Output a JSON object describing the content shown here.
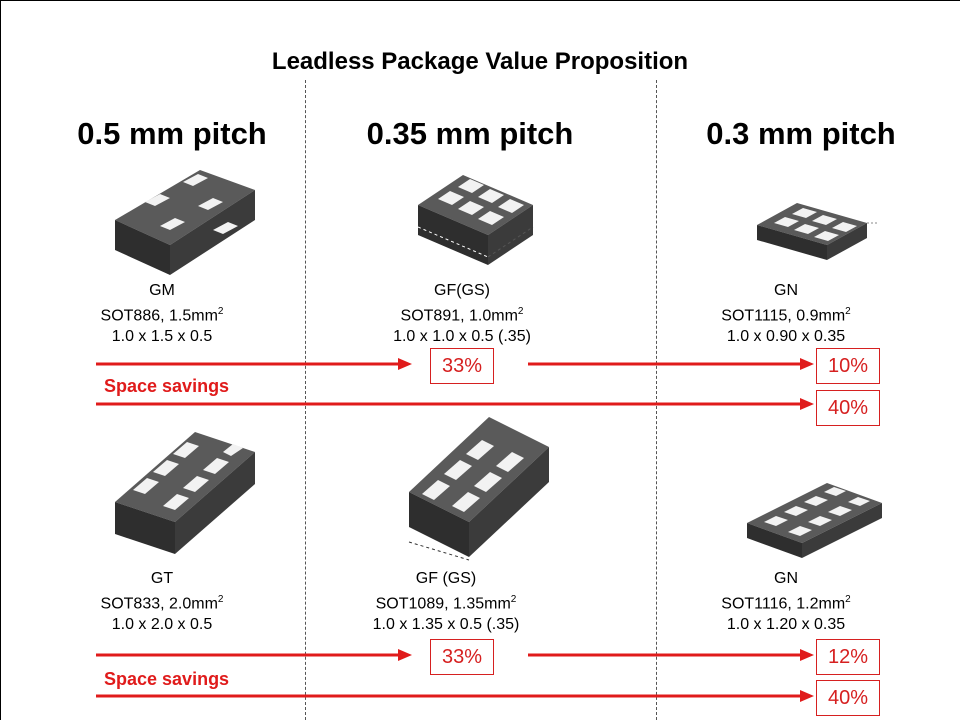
{
  "title": "Leadless Package Value Proposition",
  "pitches": [
    "0.5 mm pitch",
    "0.35 mm pitch",
    "0.3 mm pitch"
  ],
  "top_row": [
    {
      "code": "GM",
      "package": "SOT886, 1.5mm",
      "dims": "1.0 x 1.5 x 0.5"
    },
    {
      "code": "GF(GS)",
      "package": "SOT891, 1.0mm",
      "dims": "1.0 x 1.0 x 0.5 (.35)"
    },
    {
      "code": "GN",
      "package": "SOT1115, 0.9mm",
      "dims": "1.0 x 0.90 x 0.35"
    }
  ],
  "bottom_row": [
    {
      "code": "GT",
      "package": "SOT833, 2.0mm",
      "dims": "1.0 x 2.0 x 0.5"
    },
    {
      "code": "GF (GS)",
      "package": "SOT1089, 1.35mm",
      "dims": "1.0 x 1.35 x 0.5 (.35)"
    },
    {
      "code": "GN",
      "package": "SOT1116, 1.2mm",
      "dims": "1.0 x 1.20 x 0.35"
    }
  ],
  "unit_superscript": "2",
  "savings_label": "Space savings",
  "top_savings": {
    "mid": "33%",
    "right": "10%",
    "total": "40%"
  },
  "bottom_savings": {
    "mid": "33%",
    "right": "12%",
    "total": "40%"
  },
  "colors": {
    "accent": "#e01b1b",
    "package_body": "#4a4a4a",
    "pad": "#f4f4f4"
  }
}
